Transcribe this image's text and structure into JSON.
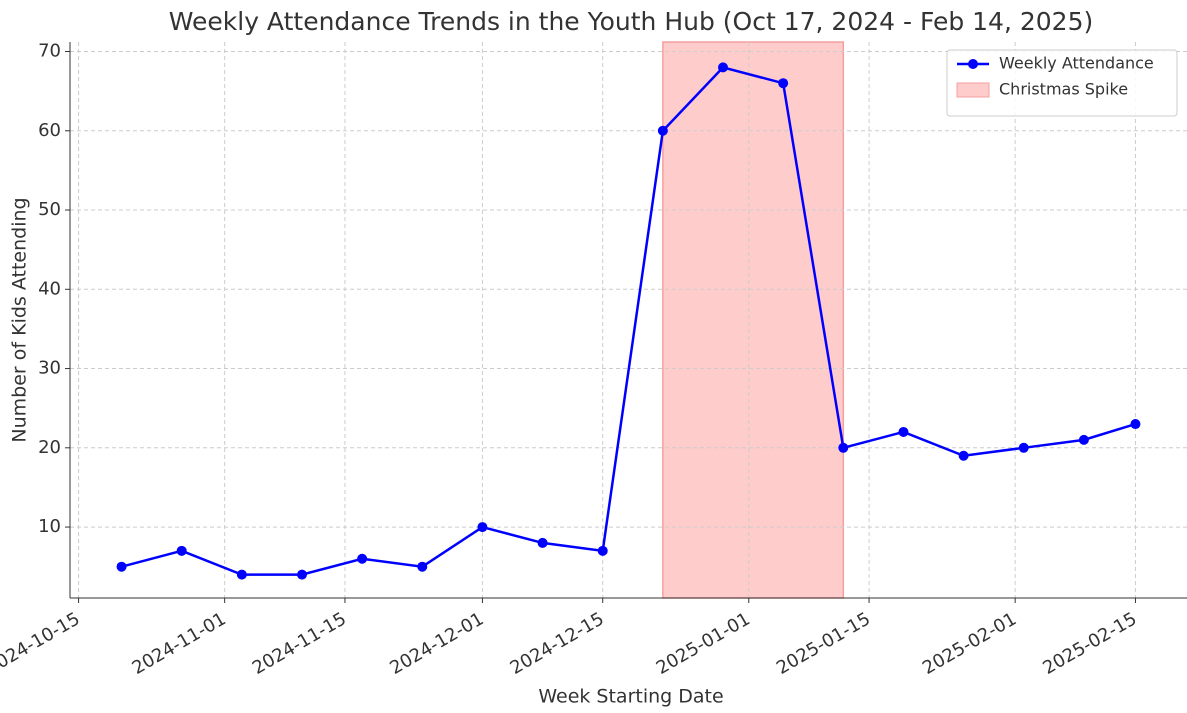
{
  "chart_data": {
    "type": "line",
    "title": "Weekly Attendance Trends in the Youth Hub (Oct 17, 2024 - Feb 14, 2025)",
    "xlabel": "Week Starting Date",
    "ylabel": "Number of Kids Attending",
    "x": [
      "2024-10-20",
      "2024-10-27",
      "2024-11-03",
      "2024-11-10",
      "2024-11-17",
      "2024-11-24",
      "2024-12-01",
      "2024-12-08",
      "2024-12-15",
      "2024-12-22",
      "2024-12-29",
      "2025-01-05",
      "2025-01-12",
      "2025-01-19",
      "2025-01-26",
      "2025-02-02",
      "2025-02-09",
      "2025-02-15"
    ],
    "series": [
      {
        "name": "Weekly Attendance",
        "color": "#0000ff",
        "values": [
          5,
          7,
          4,
          4,
          6,
          5,
          10,
          8,
          7,
          60,
          68,
          66,
          20,
          22,
          19,
          20,
          21,
          23
        ]
      }
    ],
    "spans": [
      {
        "name": "Christmas Spike",
        "color": "#ffcccc",
        "start": "2024-12-22",
        "end": "2025-01-12"
      }
    ],
    "xlim": [
      "2024-10-14",
      "2025-02-21"
    ],
    "xticks": [
      "2024-10-15",
      "2024-11-01",
      "2024-11-15",
      "2024-12-01",
      "2024-12-15",
      "2025-01-01",
      "2025-01-15",
      "2025-02-01",
      "2025-02-15"
    ],
    "ylim": [
      1.05,
      71.2
    ],
    "yticks": [
      10,
      20,
      30,
      40,
      50,
      60,
      70
    ],
    "grid": true,
    "legend": "upper right"
  }
}
